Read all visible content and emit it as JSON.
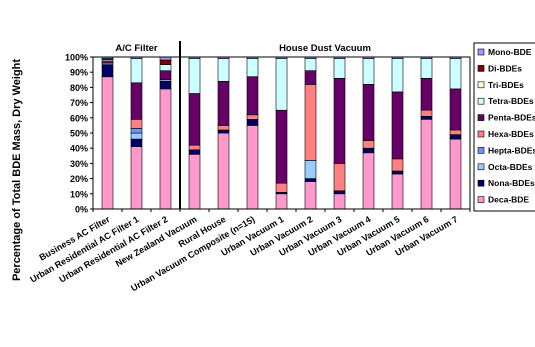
{
  "chart_data": {
    "type": "bar",
    "stacked": true,
    "ylabel": "Percentage of Total BDE Mass, Dry Weight",
    "y_ticks": [
      "0%",
      "10%",
      "20%",
      "30%",
      "40%",
      "50%",
      "60%",
      "70%",
      "80%",
      "90%",
      "100%"
    ],
    "ylim": [
      0,
      100
    ],
    "grid": false,
    "legend_position": "right",
    "group_labels": [
      "A/C Filter",
      "House Dust Vacuum"
    ],
    "groups": [
      {
        "label": "A/C Filter",
        "categories": [
          0,
          1,
          2
        ]
      },
      {
        "label": "House Dust Vacuum",
        "categories": [
          3,
          4,
          5,
          6,
          7,
          8,
          9,
          10,
          11,
          12
        ]
      }
    ],
    "categories": [
      "Business AC Filter",
      "Urban Residential AC Filter 1",
      "Urban Residential AC Filter 2",
      "New Zealand Vacuum",
      "Rural House",
      "Urban Vacuum Composite (n=15)",
      "Urban Vacuum 1",
      "Urban Vacuum 2",
      "Urban Vacuum 3",
      "Urban Vacuum 4",
      "Urban Vacuum 5",
      "Urban Vacuum 6",
      "Urban Vacuum 7"
    ],
    "series": [
      {
        "name": "Deca-BDE",
        "color": "#ff99cc",
        "values": [
          87,
          41,
          79,
          36,
          50,
          55,
          10,
          18,
          10,
          37,
          23,
          59,
          46
        ]
      },
      {
        "name": "Nona-BDEs",
        "color": "#000066",
        "values": [
          8,
          5,
          5,
          3,
          2,
          4,
          1,
          2,
          2,
          3,
          2,
          2,
          3
        ]
      },
      {
        "name": "Octa-BDEs",
        "color": "#99ccff",
        "values": [
          1,
          4,
          1,
          0,
          0,
          0,
          0,
          12,
          0,
          0,
          0,
          0,
          0
        ]
      },
      {
        "name": "Hepta-BDEs",
        "color": "#6699ff",
        "values": [
          0,
          3,
          0,
          0,
          0,
          0,
          0,
          0,
          0,
          0,
          0,
          0,
          0
        ]
      },
      {
        "name": "Hexa-BDEs",
        "color": "#ff8080",
        "values": [
          0,
          6,
          0,
          3,
          3,
          3,
          6,
          50,
          18,
          5,
          8,
          4,
          3
        ]
      },
      {
        "name": "Penta-BDEs",
        "color": "#660066",
        "values": [
          1,
          24,
          6,
          34,
          29,
          25,
          48,
          9,
          56,
          37,
          44,
          21,
          27
        ]
      },
      {
        "name": "Tetra-BDEs",
        "color": "#ccffff",
        "values": [
          1,
          16,
          4,
          23,
          15,
          12,
          34,
          8,
          13,
          17,
          22,
          13,
          20
        ]
      },
      {
        "name": "Tri-BDEs",
        "color": "#ffffcc",
        "values": [
          0,
          0,
          0,
          0,
          0,
          0,
          0,
          0,
          0,
          0,
          0,
          0,
          0
        ]
      },
      {
        "name": "Di-BDEs",
        "color": "#800000",
        "values": [
          1,
          0,
          3,
          0,
          0,
          0,
          0,
          0,
          0,
          0,
          0,
          0,
          0
        ]
      },
      {
        "name": "Mono-BDE",
        "color": "#9999ff",
        "values": [
          1,
          1,
          2,
          1,
          1,
          1,
          1,
          1,
          1,
          1,
          1,
          1,
          1
        ]
      }
    ]
  }
}
